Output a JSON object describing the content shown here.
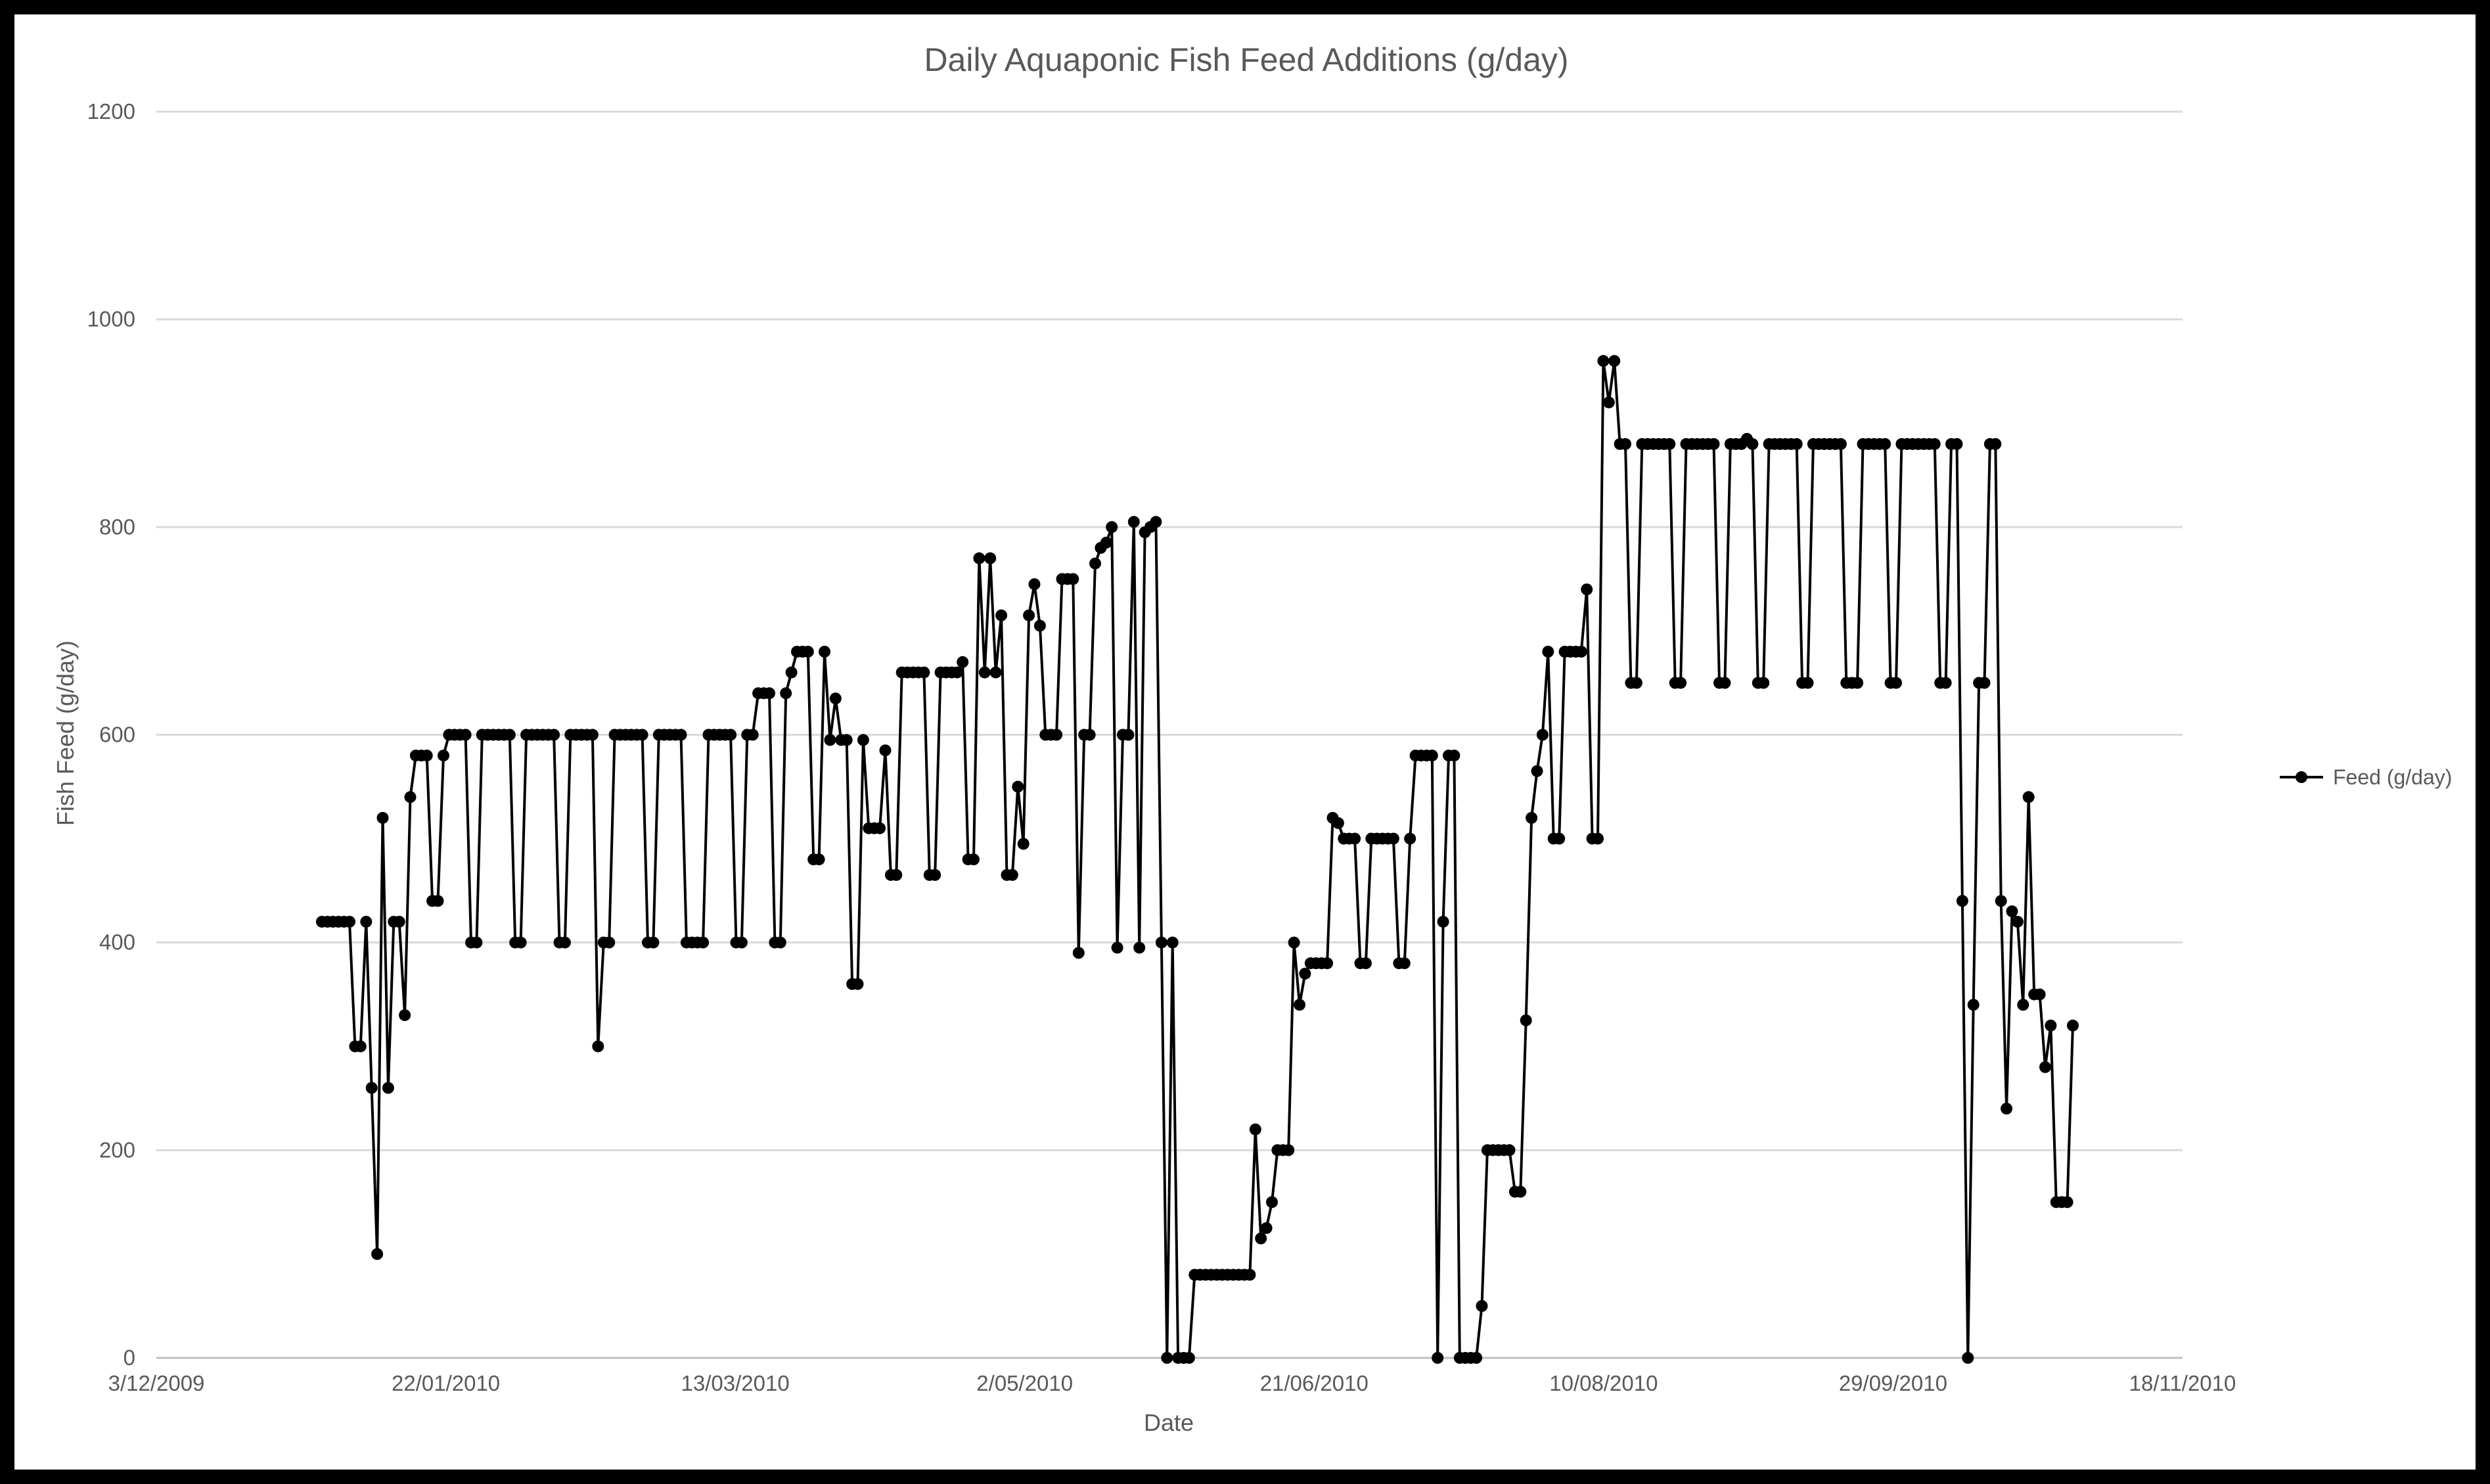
{
  "chart_data": {
    "type": "line",
    "title": "Daily Aquaponic Fish Feed Additions (g/day)",
    "xlabel": "Date",
    "ylabel": "Fish Feed (g/day)",
    "xlim": [
      "3/12/2009",
      "18/11/2010"
    ],
    "ylim": [
      0,
      1200
    ],
    "x_ticks": [
      "3/12/2009",
      "22/01/2010",
      "13/03/2010",
      "2/05/2010",
      "21/06/2010",
      "10/08/2010",
      "29/09/2010",
      "18/11/2010"
    ],
    "y_ticks": [
      "0",
      "200",
      "400",
      "600",
      "800",
      "1000",
      "1200"
    ],
    "grid": "horizontal",
    "legend_position": "right",
    "series": [
      {
        "name": "Feed (g/day)",
        "color": "#000000",
        "values": [
          420,
          420,
          420,
          420,
          420,
          420,
          300,
          300,
          420,
          260,
          100,
          520,
          260,
          420,
          420,
          330,
          540,
          580,
          580,
          580,
          440,
          440,
          580,
          600,
          600,
          600,
          600,
          400,
          400,
          600,
          600,
          600,
          600,
          600,
          600,
          400,
          400,
          600,
          600,
          600,
          600,
          600,
          600,
          400,
          400,
          600,
          600,
          600,
          600,
          600,
          300,
          400,
          400,
          600,
          600,
          600,
          600,
          600,
          600,
          400,
          400,
          600,
          600,
          600,
          600,
          600,
          400,
          400,
          400,
          400,
          600,
          600,
          600,
          600,
          600,
          400,
          400,
          600,
          600,
          640,
          640,
          640,
          400,
          400,
          640,
          660,
          680,
          680,
          680,
          480,
          480,
          680,
          595,
          635,
          595,
          595,
          360,
          360,
          595,
          510,
          510,
          510,
          585,
          465,
          465,
          660,
          660,
          660,
          660,
          660,
          465,
          465,
          660,
          660,
          660,
          660,
          670,
          480,
          480,
          770,
          660,
          770,
          660,
          715,
          465,
          465,
          550,
          495,
          715,
          745,
          705,
          600,
          600,
          600,
          750,
          750,
          750,
          390,
          600,
          600,
          765,
          780,
          785,
          800,
          395,
          600,
          600,
          805,
          395,
          795,
          800,
          805,
          400,
          0,
          400,
          0,
          0,
          0,
          80,
          80,
          80,
          80,
          80,
          80,
          80,
          80,
          80,
          80,
          80,
          220,
          115,
          125,
          150,
          200,
          200,
          200,
          400,
          340,
          370,
          380,
          380,
          380,
          380,
          520,
          515,
          500,
          500,
          500,
          380,
          380,
          500,
          500,
          500,
          500,
          500,
          380,
          380,
          500,
          580,
          580,
          580,
          580,
          0,
          420,
          580,
          580,
          0,
          0,
          0,
          0,
          50,
          200,
          200,
          200,
          200,
          200,
          160,
          160,
          325,
          520,
          565,
          600,
          680,
          500,
          500,
          680,
          680,
          680,
          680,
          740,
          500,
          500,
          960,
          920,
          960,
          880,
          880,
          650,
          650,
          880,
          880,
          880,
          880,
          880,
          880,
          650,
          650,
          880,
          880,
          880,
          880,
          880,
          880,
          650,
          650,
          880,
          880,
          880,
          885,
          880,
          650,
          650,
          880,
          880,
          880,
          880,
          880,
          880,
          650,
          650,
          880,
          880,
          880,
          880,
          880,
          880,
          650,
          650,
          650,
          880,
          880,
          880,
          880,
          880,
          650,
          650,
          880,
          880,
          880,
          880,
          880,
          880,
          880,
          650,
          650,
          880,
          880,
          440,
          0,
          340,
          650,
          650,
          880,
          880,
          440,
          240,
          430,
          420,
          340,
          540,
          350,
          350,
          280,
          320,
          150,
          150,
          150,
          320
        ]
      }
    ]
  }
}
